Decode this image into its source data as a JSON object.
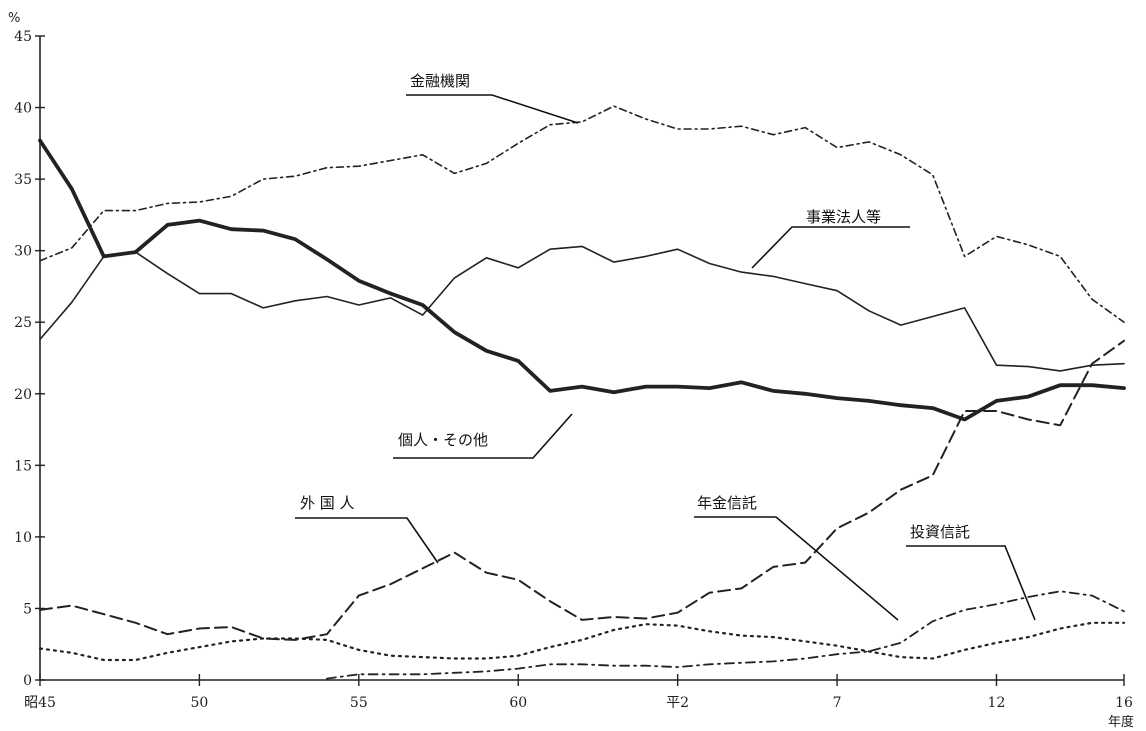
{
  "chart_data": {
    "type": "line",
    "y_unit": "%",
    "x_unit": "年度",
    "ylim": [
      0,
      45
    ],
    "y_ticks": [
      0,
      5,
      10,
      15,
      20,
      25,
      30,
      35,
      40,
      45
    ],
    "x_years": [
      45,
      46,
      47,
      48,
      49,
      50,
      51,
      52,
      53,
      54,
      55,
      56,
      57,
      58,
      59,
      60,
      61,
      62,
      63,
      64,
      65,
      66,
      67,
      68,
      69,
      70,
      71,
      72,
      73,
      74,
      75,
      76,
      77,
      78,
      79
    ],
    "x_tick_labels": [
      {
        "label": "昭45",
        "year": 45
      },
      {
        "label": "50",
        "year": 50
      },
      {
        "label": "55",
        "year": 55
      },
      {
        "label": "60",
        "year": 60
      },
      {
        "label": "平2",
        "year": 65
      },
      {
        "label": "7",
        "year": 70
      },
      {
        "label": "12",
        "year": 75
      },
      {
        "label": "16",
        "year": 79
      }
    ],
    "grid": false,
    "legend": "none",
    "series": [
      {
        "name": "金融機関",
        "style": "dash-dot-fine",
        "values": [
          29.3,
          30.2,
          32.8,
          32.8,
          33.3,
          33.4,
          33.8,
          35.0,
          35.2,
          35.8,
          35.9,
          36.3,
          36.7,
          35.4,
          36.1,
          37.5,
          38.8,
          39.0,
          40.1,
          39.2,
          38.5,
          38.5,
          38.7,
          38.1,
          38.6,
          37.2,
          37.6,
          36.7,
          35.3,
          29.6,
          31.0,
          30.4,
          29.6,
          26.6,
          25.0
        ]
      },
      {
        "name": "事業法人等",
        "style": "solid-thin",
        "values": [
          23.8,
          26.4,
          29.6,
          29.9,
          28.4,
          27.0,
          27.0,
          26.0,
          26.5,
          26.8,
          26.2,
          26.7,
          25.5,
          28.1,
          29.5,
          28.8,
          30.1,
          30.3,
          29.2,
          29.6,
          30.1,
          29.1,
          28.5,
          28.2,
          27.7,
          27.2,
          25.8,
          24.8,
          25.4,
          26.0,
          22.0,
          21.9,
          21.6,
          22.0,
          22.1
        ]
      },
      {
        "name": "個人・その他",
        "style": "solid-thick",
        "values": [
          37.7,
          34.3,
          29.6,
          29.9,
          31.8,
          32.1,
          31.5,
          31.4,
          30.8,
          29.4,
          27.9,
          27.0,
          26.2,
          24.3,
          23.0,
          22.3,
          20.2,
          20.5,
          20.1,
          20.5,
          20.5,
          20.4,
          20.8,
          20.2,
          20.0,
          19.7,
          19.5,
          19.2,
          19.0,
          18.2,
          19.5,
          19.8,
          20.6,
          20.6,
          20.4
        ]
      },
      {
        "name": "外国人",
        "style": "dashed-long",
        "values": [
          4.9,
          5.2,
          4.6,
          4.0,
          3.2,
          3.6,
          3.7,
          2.9,
          2.8,
          3.2,
          5.9,
          6.7,
          7.8,
          8.9,
          7.5,
          7.0,
          5.5,
          4.2,
          4.4,
          4.3,
          4.7,
          6.1,
          6.4,
          7.9,
          8.2,
          10.6,
          11.7,
          13.3,
          14.3,
          18.8,
          18.8,
          18.2,
          17.8,
          22.1,
          23.7
        ]
      },
      {
        "name": "年金信託",
        "style": "dotted",
        "values": [
          2.2,
          1.9,
          1.4,
          1.4,
          1.9,
          2.3,
          2.7,
          2.9,
          2.9,
          2.8,
          2.1,
          1.7,
          1.6,
          1.5,
          1.5,
          1.7,
          2.3,
          2.8,
          3.5,
          3.9,
          3.8,
          3.4,
          3.1,
          3.0,
          2.7,
          2.4,
          2.0,
          1.6,
          1.5,
          2.1,
          2.6,
          3.0,
          3.6,
          4.0,
          4.0
        ]
      },
      {
        "name": "投資信託",
        "style": "dash-dot",
        "values": [
          null,
          null,
          null,
          null,
          null,
          null,
          null,
          null,
          null,
          0.1,
          0.4,
          0.4,
          0.4,
          0.5,
          0.6,
          0.8,
          1.1,
          1.1,
          1.0,
          1.0,
          0.9,
          1.1,
          1.2,
          1.3,
          1.5,
          1.8,
          2.0,
          2.6,
          4.1,
          4.9,
          5.3,
          5.8,
          6.2,
          5.9,
          4.8
        ]
      }
    ],
    "annotations": [
      {
        "series": "金融機関",
        "text": "金融機関"
      },
      {
        "series": "事業法人等",
        "text": "事業法人等"
      },
      {
        "series": "個人・その他",
        "text": "個人・その他"
      },
      {
        "series": "外国人",
        "text": "外 国 人"
      },
      {
        "series": "年金信託",
        "text": "年金信託"
      },
      {
        "series": "投資信託",
        "text": "投資信託"
      }
    ]
  }
}
